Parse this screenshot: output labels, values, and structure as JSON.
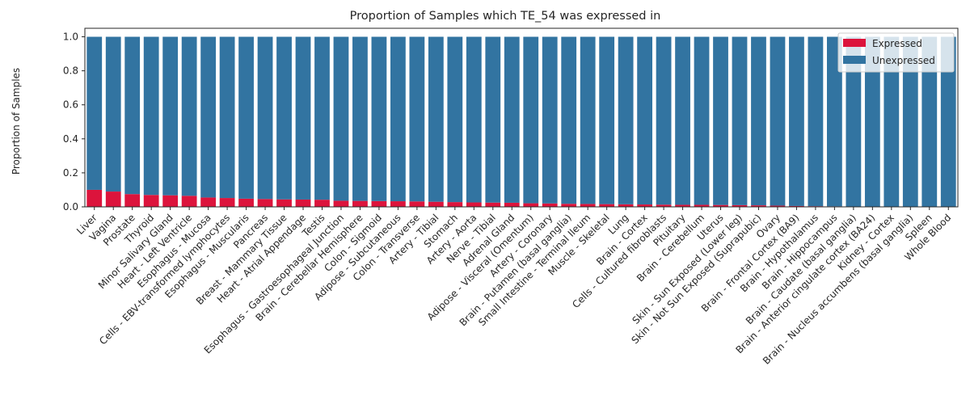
{
  "chart_data": {
    "type": "bar",
    "stacked": true,
    "title": "Proportion of Samples which TE_54 was expressed in",
    "xlabel": "",
    "ylabel": "Proportion of Samples",
    "ylim": [
      0,
      1.05
    ],
    "yticks": [
      0.0,
      0.2,
      0.4,
      0.6,
      0.8,
      1.0
    ],
    "ytick_labels": [
      "0.0",
      "0.2",
      "0.4",
      "0.6",
      "0.8",
      "1.0"
    ],
    "grid": false,
    "legend_position": "top-right",
    "categories": [
      "Liver",
      "Vagina",
      "Prostate",
      "Thyroid",
      "Minor Salivary Gland",
      "Heart - Left Ventricle",
      "Esophagus - Mucosa",
      "Cells - EBV-transformed lymphocytes",
      "Esophagus - Muscularis",
      "Pancreas",
      "Breast - Mammary Tissue",
      "Heart - Atrial Appendage",
      "Testis",
      "Esophagus - Gastroesophageal Junction",
      "Brain - Cerebellar Hemisphere",
      "Colon - Sigmoid",
      "Adipose - Subcutaneous",
      "Colon - Transverse",
      "Artery - Tibial",
      "Stomach",
      "Artery - Aorta",
      "Nerve - Tibial",
      "Adrenal Gland",
      "Adipose - Visceral (Omentum)",
      "Artery - Coronary",
      "Brain - Putamen (basal ganglia)",
      "Small Intestine - Terminal Ileum",
      "Muscle - Skeletal",
      "Lung",
      "Brain - Cortex",
      "Cells - Cultured fibroblasts",
      "Pituitary",
      "Brain - Cerebellum",
      "Uterus",
      "Skin - Sun Exposed (Lower leg)",
      "Skin - Not Sun Exposed (Suprapubic)",
      "Ovary",
      "Brain - Frontal Cortex (BA9)",
      "Brain - Hypothalamus",
      "Brain - Hippocampus",
      "Brain - Caudate (basal ganglia)",
      "Brain - Anterior cingulate cortex (BA24)",
      "Kidney - Cortex",
      "Brain - Nucleus accumbens (basal ganglia)",
      "Spleen",
      "Whole Blood"
    ],
    "series": [
      {
        "name": "Expressed",
        "color": "#dc143c",
        "values": [
          0.1,
          0.09,
          0.075,
          0.07,
          0.068,
          0.065,
          0.055,
          0.052,
          0.048,
          0.046,
          0.044,
          0.043,
          0.042,
          0.036,
          0.035,
          0.034,
          0.033,
          0.032,
          0.03,
          0.028,
          0.026,
          0.025,
          0.024,
          0.021,
          0.02,
          0.018,
          0.017,
          0.016,
          0.015,
          0.014,
          0.013,
          0.012,
          0.012,
          0.011,
          0.01,
          0.009,
          0.007,
          0.005,
          0.004,
          0.003,
          0.002,
          0.0,
          0.0,
          0.0,
          0.0,
          0.0
        ]
      },
      {
        "name": "Unexpressed",
        "color": "#3274a1",
        "values": [
          0.9,
          0.91,
          0.925,
          0.93,
          0.932,
          0.935,
          0.945,
          0.948,
          0.952,
          0.954,
          0.956,
          0.957,
          0.958,
          0.964,
          0.965,
          0.966,
          0.967,
          0.968,
          0.97,
          0.972,
          0.974,
          0.975,
          0.976,
          0.979,
          0.98,
          0.982,
          0.983,
          0.984,
          0.985,
          0.986,
          0.987,
          0.988,
          0.988,
          0.989,
          0.99,
          0.991,
          0.993,
          0.995,
          0.996,
          0.997,
          0.998,
          1.0,
          1.0,
          1.0,
          1.0,
          1.0
        ]
      }
    ]
  }
}
